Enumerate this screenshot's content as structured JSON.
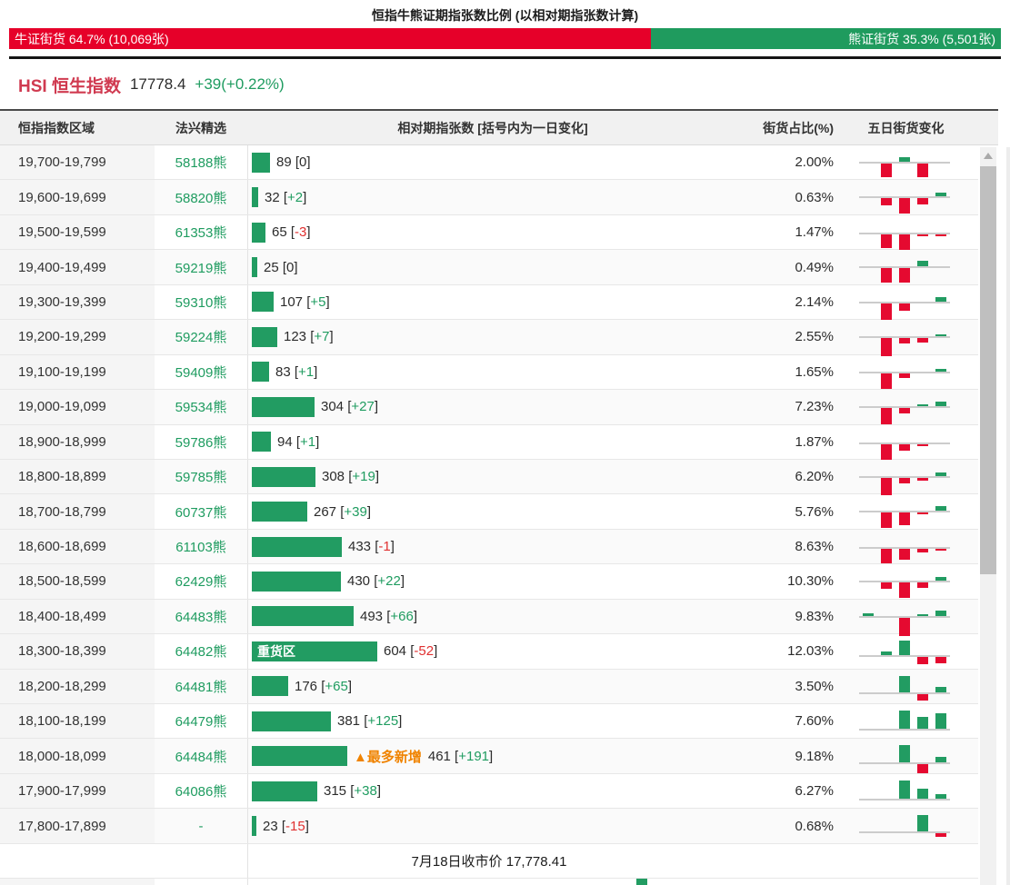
{
  "header": {
    "title": "恒指牛熊证期指张数比例 (以相对期指张数计算)",
    "bull_label": "牛证街货 64.7% (10,069张)",
    "bull_pct": 64.7,
    "bear_label": "熊证街货 35.3% (5,501张)",
    "bear_pct": 35.3,
    "bull_color": "#e60029",
    "bear_color": "#1f9b5e"
  },
  "index": {
    "title": "HSI 恒生指数",
    "price": "17778.4",
    "change": "+39(+0.22%)",
    "change_color": "#1f9c60"
  },
  "table": {
    "headers": [
      "恒指指数区域",
      "法兴精选",
      "相对期指张数 [括号内为一日变化]",
      "街货占比(%)",
      "五日街货变化"
    ],
    "heavy_label": "重货区",
    "most_new_label": "▲最多新增",
    "footer": "7月18日收市价 17,778.41",
    "rows": [
      {
        "range": "19,700-19,799",
        "code": "58188熊",
        "value": 89,
        "change": "0",
        "pct": "2.00%",
        "five_day": [
          0,
          -15,
          5,
          -15,
          0
        ]
      },
      {
        "range": "19,600-19,699",
        "code": "58820熊",
        "value": 32,
        "change": "+2",
        "pct": "0.63%",
        "five_day": [
          0,
          -8,
          -17,
          -7,
          4
        ]
      },
      {
        "range": "19,500-19,599",
        "code": "61353熊",
        "value": 65,
        "change": "-3",
        "pct": "1.47%",
        "five_day": [
          0,
          -15,
          -17,
          -2,
          -2
        ]
      },
      {
        "range": "19,400-19,499",
        "code": "59219熊",
        "value": 25,
        "change": "0",
        "pct": "0.49%",
        "five_day": [
          0,
          -16,
          -16,
          6,
          0
        ]
      },
      {
        "range": "19,300-19,399",
        "code": "59310熊",
        "value": 107,
        "change": "+5",
        "pct": "2.14%",
        "five_day": [
          0,
          -18,
          -8,
          0,
          5
        ]
      },
      {
        "range": "19,200-19,299",
        "code": "59224熊",
        "value": 123,
        "change": "+7",
        "pct": "2.55%",
        "five_day": [
          0,
          -20,
          -6,
          -5,
          2
        ]
      },
      {
        "range": "19,100-19,199",
        "code": "59409熊",
        "value": 83,
        "change": "+1",
        "pct": "1.65%",
        "five_day": [
          0,
          -17,
          -5,
          0,
          3
        ]
      },
      {
        "range": "19,000-19,099",
        "code": "59534熊",
        "value": 304,
        "change": "+27",
        "pct": "7.23%",
        "five_day": [
          0,
          -18,
          -6,
          2,
          5
        ]
      },
      {
        "range": "18,900-18,999",
        "code": "59786熊",
        "value": 94,
        "change": "+1",
        "pct": "1.87%",
        "five_day": [
          0,
          -18,
          -7,
          -2,
          0
        ]
      },
      {
        "range": "18,800-18,899",
        "code": "59785熊",
        "value": 308,
        "change": "+19",
        "pct": "6.20%",
        "five_day": [
          0,
          -19,
          -6,
          -3,
          4
        ]
      },
      {
        "range": "18,700-18,799",
        "code": "60737熊",
        "value": 267,
        "change": "+39",
        "pct": "5.76%",
        "five_day": [
          0,
          -17,
          -14,
          -2,
          5
        ]
      },
      {
        "range": "18,600-18,699",
        "code": "61103熊",
        "value": 433,
        "change": "-1",
        "pct": "8.63%",
        "five_day": [
          0,
          -16,
          -12,
          -4,
          -2
        ]
      },
      {
        "range": "18,500-18,599",
        "code": "62429熊",
        "value": 430,
        "change": "+22",
        "pct": "10.30%",
        "five_day": [
          0,
          -7,
          -17,
          -6,
          4
        ]
      },
      {
        "range": "18,400-18,499",
        "code": "64483熊",
        "value": 493,
        "change": "+66",
        "pct": "9.83%",
        "five_day": [
          3,
          0,
          -20,
          2,
          6
        ]
      },
      {
        "range": "18,300-18,399",
        "code": "64482熊",
        "value": 604,
        "change": "-52",
        "pct": "12.03%",
        "five_day": [
          0,
          4,
          16,
          -8,
          -7
        ],
        "tag": "heavy"
      },
      {
        "range": "18,200-18,299",
        "code": "64481熊",
        "value": 176,
        "change": "+65",
        "pct": "3.50%",
        "five_day": [
          0,
          0,
          18,
          -7,
          6
        ]
      },
      {
        "range": "18,100-18,199",
        "code": "64479熊",
        "value": 381,
        "change": "+125",
        "pct": "7.60%",
        "five_day": [
          0,
          0,
          20,
          13,
          17
        ]
      },
      {
        "range": "18,000-18,099",
        "code": "64484熊",
        "value": 461,
        "change": "+191",
        "pct": "9.18%",
        "five_day": [
          0,
          0,
          19,
          -10,
          6
        ],
        "tag": "most_new"
      },
      {
        "range": "17,900-17,999",
        "code": "64086熊",
        "value": 315,
        "change": "+38",
        "pct": "6.27%",
        "five_day": [
          0,
          0,
          20,
          11,
          5
        ]
      },
      {
        "range": "17,800-17,899",
        "code": "-",
        "value": 23,
        "change": "-15",
        "pct": "0.68%",
        "five_day": [
          0,
          0,
          0,
          18,
          -4
        ]
      }
    ],
    "colors": {
      "bar_green": "#229c62",
      "mini_red": "#e50a30",
      "neg_text": "#e03030",
      "pos_text": "#1f9c60"
    }
  }
}
